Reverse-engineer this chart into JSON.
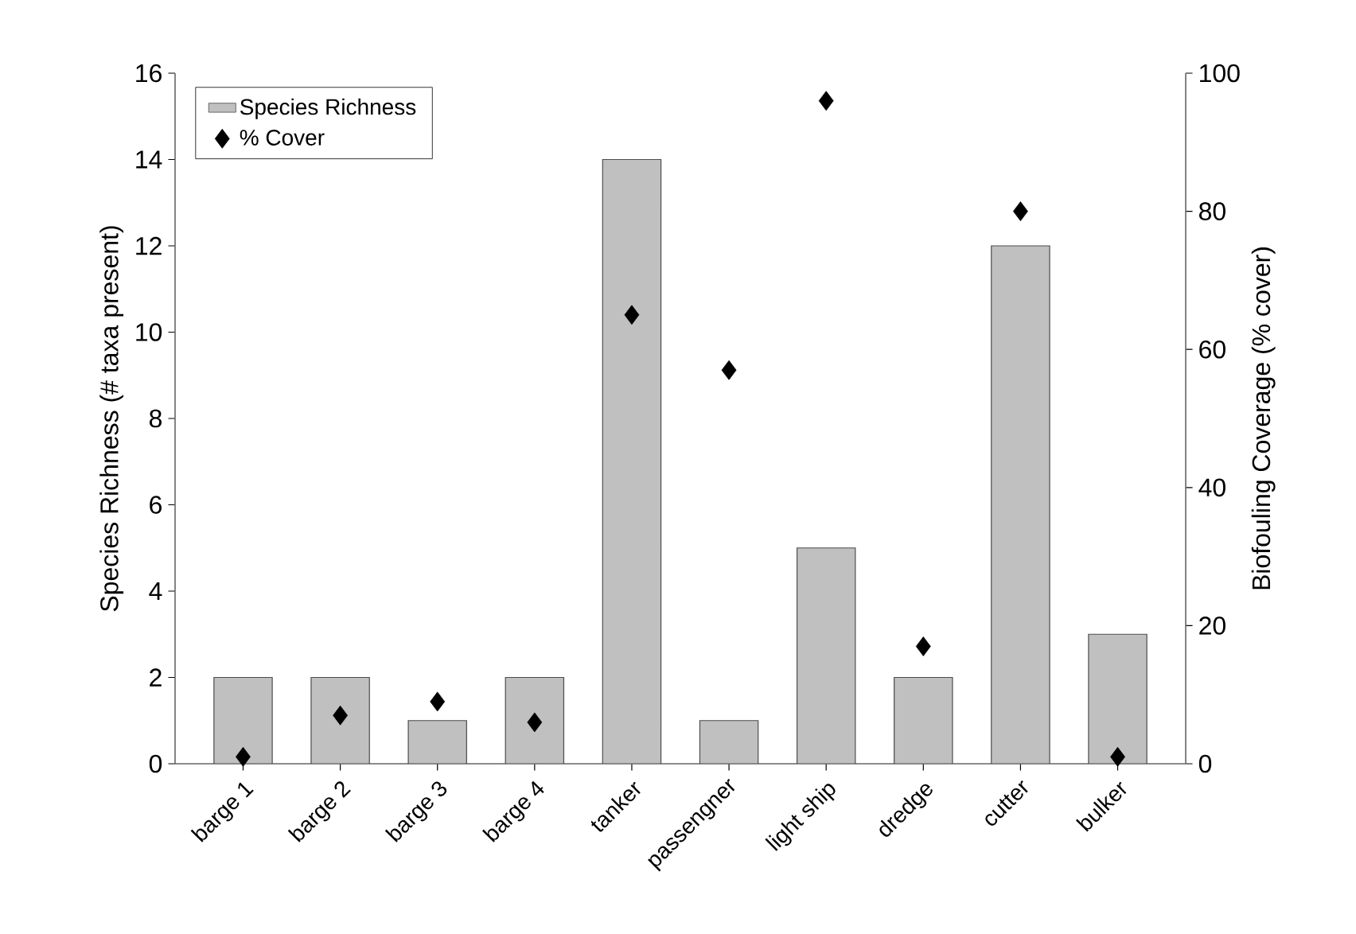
{
  "chart_data": {
    "type": "bar",
    "categories": [
      "barge 1",
      "barge 2",
      "barge 3",
      "barge 4",
      "tanker",
      "passengner",
      "light ship",
      "dredge",
      "cutter",
      "bulker"
    ],
    "series": [
      {
        "name": "Species Richness",
        "color": "#c0c0c0",
        "values": [
          2,
          2,
          1,
          2,
          14,
          1,
          5,
          2,
          12,
          3
        ]
      },
      {
        "name": "% Cover",
        "type": "scatter",
        "axis": "y2",
        "color": "#000000",
        "values": [
          1,
          7,
          9,
          6,
          65,
          57,
          96,
          17,
          80,
          1
        ]
      }
    ],
    "ylabel": "Species Richness (# taxa present)",
    "y2label": "Biofouling Coverage (% cover)",
    "ylim": [
      0,
      16
    ],
    "yticks": [
      0,
      2,
      4,
      6,
      8,
      10,
      12,
      14,
      16
    ],
    "y2lim": [
      0,
      100
    ],
    "y2ticks": [
      0,
      20,
      40,
      60,
      80,
      100
    ],
    "legend": "top left",
    "marker": "diamond",
    "grid": false
  }
}
